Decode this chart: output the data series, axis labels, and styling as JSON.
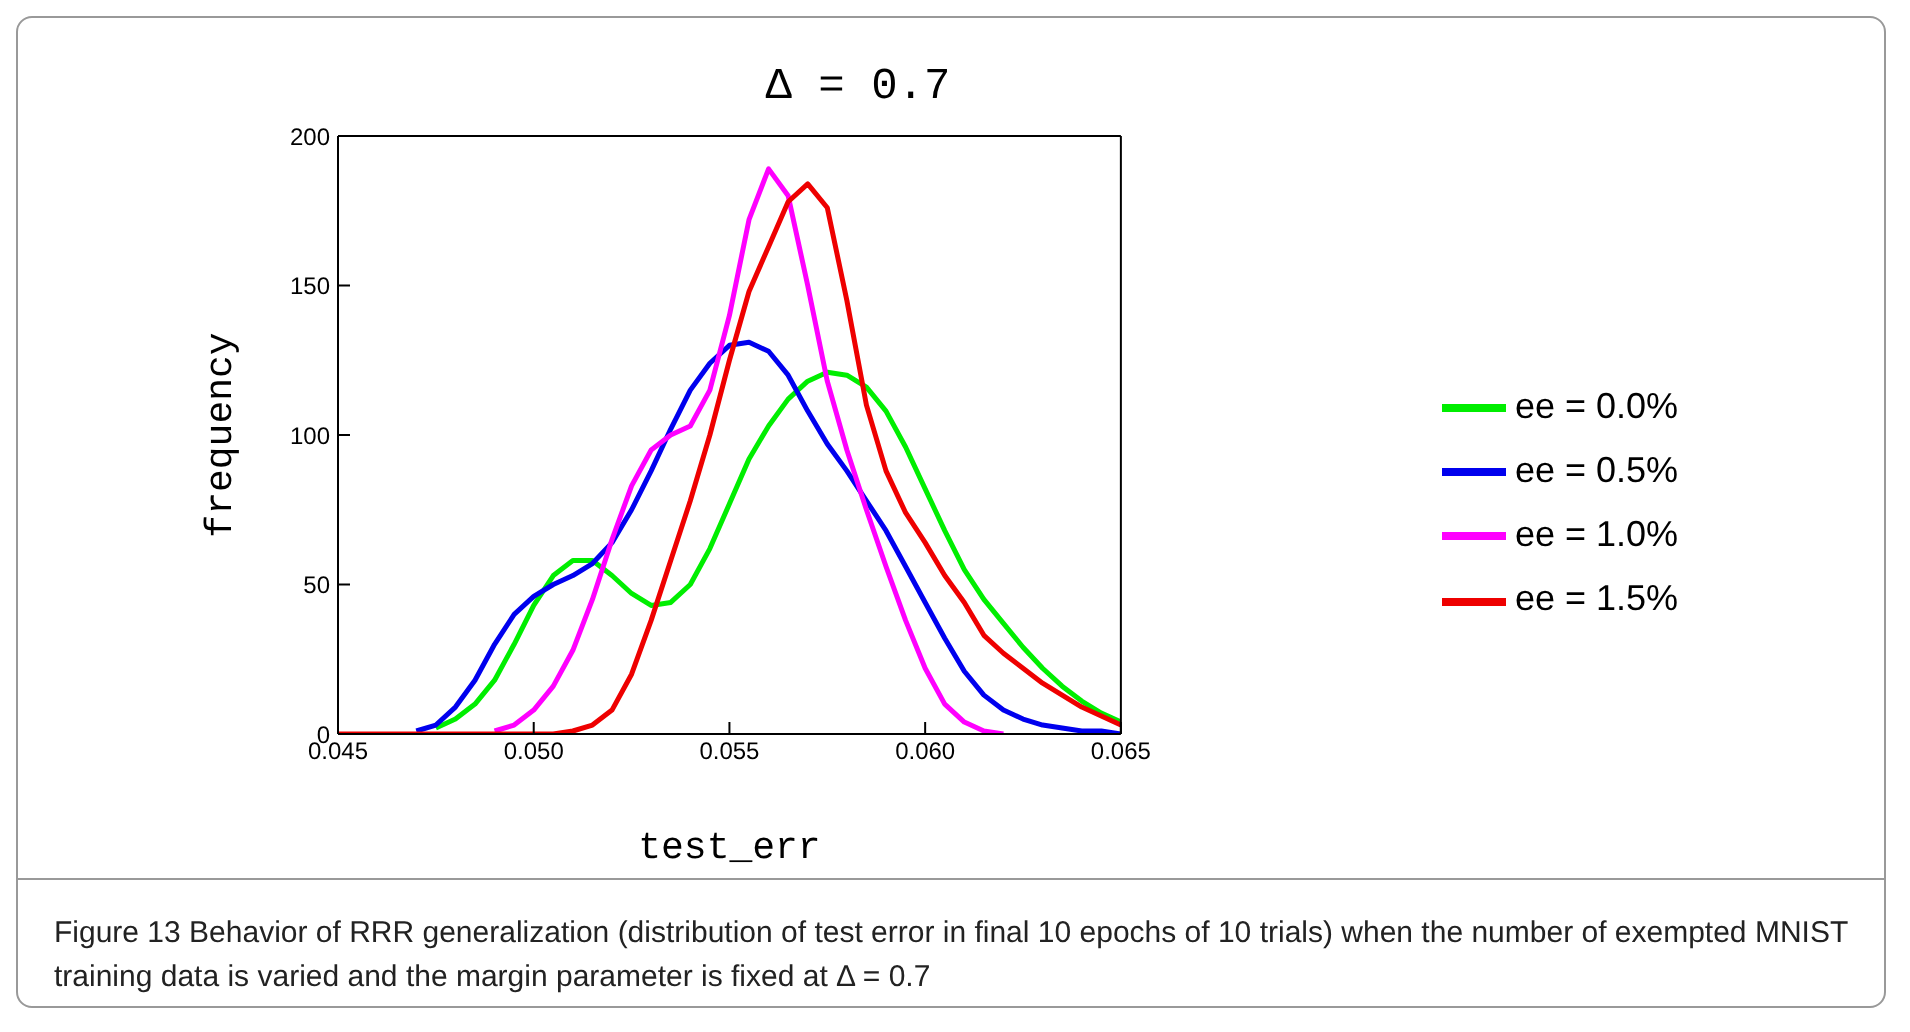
{
  "chart_data": {
    "type": "line",
    "title": "Δ = 0.7",
    "xlabel": "test_err",
    "ylabel": "frequency",
    "series": [
      {
        "name": "ee = 0.0%",
        "color": "#00ee00",
        "x": [
          0.0475,
          0.048,
          0.0485,
          0.049,
          0.0495,
          0.05,
          0.0505,
          0.051,
          0.0515,
          0.052,
          0.0525,
          0.053,
          0.0535,
          0.054,
          0.0545,
          0.055,
          0.0555,
          0.056,
          0.0565,
          0.057,
          0.0575,
          0.058,
          0.0585,
          0.059,
          0.0595,
          0.06,
          0.0605,
          0.061,
          0.0615,
          0.062,
          0.0625,
          0.063,
          0.0635,
          0.064,
          0.0645,
          0.065
        ],
        "values": [
          2,
          5,
          10,
          18,
          30,
          43,
          53,
          58,
          58,
          53,
          47,
          43,
          44,
          50,
          62,
          77,
          92,
          103,
          112,
          118,
          121,
          120,
          116,
          108,
          96,
          82,
          68,
          55,
          45,
          37,
          29,
          22,
          16,
          11,
          7,
          4
        ]
      },
      {
        "name": "ee = 0.5%",
        "color": "#0000ee",
        "x": [
          0.047,
          0.0475,
          0.048,
          0.0485,
          0.049,
          0.0495,
          0.05,
          0.0505,
          0.051,
          0.0515,
          0.052,
          0.0525,
          0.053,
          0.0535,
          0.054,
          0.0545,
          0.055,
          0.0555,
          0.056,
          0.0565,
          0.057,
          0.0575,
          0.058,
          0.0585,
          0.059,
          0.0595,
          0.06,
          0.0605,
          0.061,
          0.0615,
          0.062,
          0.0625,
          0.063,
          0.0635,
          0.064,
          0.0645,
          0.065
        ],
        "values": [
          1,
          3,
          9,
          18,
          30,
          40,
          46,
          50,
          53,
          57,
          64,
          75,
          88,
          102,
          115,
          124,
          130,
          131,
          128,
          120,
          108,
          97,
          88,
          78,
          68,
          56,
          44,
          32,
          21,
          13,
          8,
          5,
          3,
          2,
          1,
          1,
          0
        ]
      },
      {
        "name": "ee = 1.0%",
        "color": "#ff00ff",
        "x": [
          0.049,
          0.0495,
          0.05,
          0.0505,
          0.051,
          0.0515,
          0.052,
          0.0525,
          0.053,
          0.0535,
          0.054,
          0.0545,
          0.055,
          0.0555,
          0.056,
          0.0565,
          0.057,
          0.0575,
          0.058,
          0.0585,
          0.059,
          0.0595,
          0.06,
          0.0605,
          0.061,
          0.0615,
          0.062
        ],
        "values": [
          1,
          3,
          8,
          16,
          28,
          45,
          65,
          83,
          95,
          100,
          103,
          115,
          140,
          172,
          189,
          180,
          150,
          118,
          95,
          75,
          56,
          38,
          22,
          10,
          4,
          1,
          0
        ]
      },
      {
        "name": "ee = 1.5%",
        "color": "#ee0000",
        "x": [
          0.045,
          0.0455,
          0.046,
          0.0465,
          0.047,
          0.0475,
          0.048,
          0.0485,
          0.049,
          0.0495,
          0.05,
          0.0505,
          0.051,
          0.0515,
          0.052,
          0.0525,
          0.053,
          0.0535,
          0.054,
          0.0545,
          0.055,
          0.0555,
          0.056,
          0.0565,
          0.057,
          0.0575,
          0.058,
          0.0585,
          0.059,
          0.0595,
          0.06,
          0.0605,
          0.061,
          0.0615,
          0.062,
          0.0625,
          0.063,
          0.0635,
          0.064,
          0.0645,
          0.065
        ],
        "values": [
          0,
          0,
          0,
          0,
          0,
          0,
          0,
          0,
          0,
          0,
          0,
          0,
          1,
          3,
          8,
          20,
          38,
          58,
          78,
          100,
          125,
          148,
          163,
          178,
          184,
          176,
          145,
          110,
          88,
          74,
          64,
          53,
          44,
          33,
          27,
          22,
          17,
          13,
          9,
          6,
          3
        ]
      }
    ],
    "xlim": [
      0.045,
      0.065
    ],
    "xticks": [
      0.045,
      {
        "value": 0.05,
        "label": "0.050"
      },
      0.055,
      {
        "value": 0.06,
        "label": "0.060"
      },
      0.065
    ],
    "ylim": [
      0,
      200
    ],
    "yticks": [
      0,
      50,
      100,
      150,
      200
    ],
    "grid": false,
    "legend": "right",
    "marker": "none",
    "line_style": "solid",
    "annotations": [
      "Figure 13  Behavior of RRR generalization (distribution of test error in final 10 epochs of 10 trials) when the number of exempted MNIST training data is varied and the margin parameter is fixed at Δ = 0.7"
    ]
  }
}
